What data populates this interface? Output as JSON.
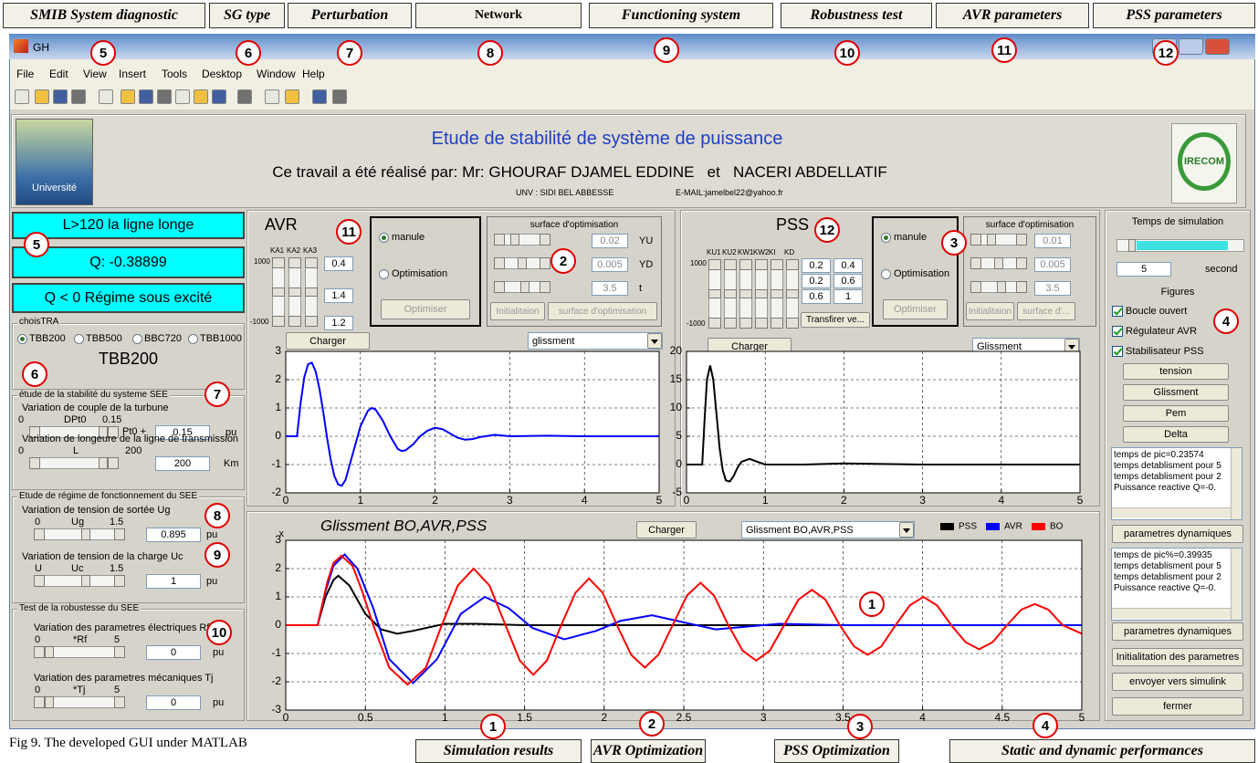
{
  "annotations": {
    "top": [
      "SMIB System diagnostic",
      "SG type",
      "Perturbation",
      "Network",
      "Functioning system",
      "Robustness test",
      "AVR parameters",
      "PSS parameters"
    ],
    "top_numbers": [
      5,
      6,
      7,
      8,
      9,
      10,
      11,
      12
    ],
    "inner_numbers": [
      5,
      6,
      7,
      8,
      9,
      10,
      11,
      2,
      12,
      3,
      4,
      1
    ],
    "bottom": [
      "Simulation results",
      "AVR Optimization",
      "PSS Optimization",
      "Static and dynamic performances"
    ],
    "bottom_numbers": [
      1,
      2,
      3,
      4
    ],
    "caption": "Fig 9. The developed GUI under MATLAB"
  },
  "window": {
    "title": "GH",
    "menu": [
      "File",
      "Edit",
      "View",
      "Insert",
      "Tools",
      "Desktop",
      "Window",
      "Help"
    ]
  },
  "header": {
    "title": "Etude de stabilité de système de puissance",
    "authors": "Ce travail a été réalisé par: Mr: GHOURAF DJAMEL EDDINE   et   NACERI ABDELLATIF",
    "university": "UNV : SIDI BEL ABBESSE",
    "email": "E-MAIL:jamelbel22@yahoo.fr",
    "logo_left": "Université",
    "logo_right": "IRECOM"
  },
  "diagnostic": [
    "L>120 la ligne longe",
    "Q: -0.38899",
    "Q < 0 Régime sous excité"
  ],
  "sg_type": {
    "title": "choisTRA",
    "options": [
      "TBB200",
      "TBB500",
      "BBC720",
      "TBB1000"
    ],
    "selected": "TBB200"
  },
  "perturbation": {
    "title": "étude de la stabilité du systeme SEE",
    "rows": [
      {
        "label": "Variation de couple de la turbune",
        "min": "0",
        "name": "DPt0",
        "max": "0.15",
        "prefix": "Pt0 +",
        "value": "0.15",
        "unit": "pu"
      },
      {
        "label": "Variation de longeure de la ligne de transmission",
        "min": "0",
        "name": "L",
        "max": "200",
        "value": "200",
        "unit": "Km"
      }
    ]
  },
  "functioning": {
    "title": "Etude de régime de fonctionnement du SEE",
    "rows": [
      {
        "label": "Variation de tension de sortée Ug",
        "min": "0",
        "name": "Ug",
        "max": "1.5",
        "value": "0.895",
        "unit": "pu"
      },
      {
        "label": "Variation de tension de la charge Uc",
        "min": "U",
        "name": "Uc",
        "max": "1.5",
        "value": "1",
        "unit": "pu"
      }
    ]
  },
  "robustness": {
    "title": "Test de la robustesse du SEE",
    "rows": [
      {
        "label": "Variation des parametres électriques Rf",
        "min": "0",
        "name": "*Rf",
        "max": "5",
        "value": "0",
        "unit": "pu"
      },
      {
        "label": "Variation des parametres mécaniques Tj",
        "min": "0",
        "name": "*Tj",
        "max": "5",
        "value": "0",
        "unit": "pu"
      }
    ]
  },
  "avr": {
    "title": "AVR",
    "gains": [
      "KA1",
      "KA2",
      "KA3"
    ],
    "slider_max": "1000",
    "slider_min": "-1000",
    "values": [
      "0.4",
      "1.4",
      "1.2"
    ],
    "modes": [
      "manule",
      "Optimisation"
    ],
    "optimise": "Optimiser",
    "surface": {
      "title": "surface d'optimisation",
      "rows": [
        {
          "value": "0.02",
          "name": "YU"
        },
        {
          "value": "0.005",
          "name": "YD"
        },
        {
          "value": "3.5",
          "name": "t"
        }
      ],
      "buttons": [
        "Initialitaion",
        "surface d'optimisation"
      ]
    },
    "load": "Charger",
    "dropdown": "glissment"
  },
  "pss": {
    "title": "PSS",
    "gains": [
      "KU1",
      "KU2",
      "KW1",
      "KW2",
      "KI",
      "KD"
    ],
    "slider_max": "1000",
    "slider_min": "-1000",
    "values": [
      "0.2",
      "0.4",
      "0.2",
      "0.6",
      "0.6",
      "1"
    ],
    "transfer": "Transfirer ve...",
    "modes": [
      "manule",
      "Optimisation"
    ],
    "optimise": "Optimiser",
    "surface": {
      "title": "surface d'optimisation",
      "rows": [
        {
          "value": "0.01"
        },
        {
          "value": "0.005"
        },
        {
          "value": "3.5"
        }
      ],
      "buttons": [
        "Initialitaion",
        "surface d'..."
      ]
    },
    "load": "Charger",
    "dropdown": "Glissment"
  },
  "results": {
    "load": "Charger",
    "dropdown": "Glissment BO,AVR,PSS"
  },
  "performance": {
    "sim_time_label": "Temps de simulation",
    "sim_time": "5",
    "unit": "second",
    "figures": "Figures",
    "checks": [
      "Boucle ouvert",
      "Régulateur AVR",
      "Stabilisateur PSS"
    ],
    "plots": [
      "tension",
      "Glissment",
      "Pem",
      "Delta"
    ],
    "list1": [
      "temps de pic=0.23574",
      "temps detablisment pour 5",
      "temps detablisment pour 2",
      "Puissance reactive Q=-0."
    ],
    "button1": "parametres dynamiques",
    "list2": [
      "temps de pic%=0.39935",
      "temps detablisment pour 5",
      "temps detablisment pour 2",
      "Puissance reactive Q=-0."
    ],
    "buttons": [
      "parametres dynamiques",
      "Initialitation des parametres",
      "envoyer vers simulink",
      "fermer"
    ]
  },
  "chart_data": [
    {
      "type": "line",
      "xlim": [
        0,
        5
      ],
      "ylim": [
        -2,
        3
      ],
      "xticks": [
        0,
        1,
        2,
        3,
        4,
        5
      ],
      "yticks": [
        -2,
        -1,
        0,
        1,
        2,
        3
      ],
      "grid": true,
      "x": [
        0,
        0.1,
        0.15,
        0.2,
        0.25,
        0.3,
        0.35,
        0.4,
        0.45,
        0.5,
        0.55,
        0.6,
        0.65,
        0.7,
        0.75,
        0.8,
        0.9,
        1.0,
        1.1,
        1.15,
        1.2,
        1.3,
        1.4,
        1.5,
        1.55,
        1.6,
        1.7,
        1.8,
        1.9,
        2.0,
        2.1,
        2.2,
        2.3,
        2.4,
        2.5,
        2.6,
        2.8,
        3.0,
        3.5,
        4,
        5
      ],
      "series": [
        {
          "color": "#0000ff",
          "values": [
            0,
            0,
            0,
            1.2,
            2.1,
            2.55,
            2.6,
            2.3,
            1.7,
            0.9,
            0,
            -0.8,
            -1.4,
            -1.7,
            -1.75,
            -1.55,
            -0.6,
            0.35,
            0.9,
            1.0,
            0.95,
            0.55,
            0,
            -0.45,
            -0.52,
            -0.5,
            -0.3,
            0,
            0.2,
            0.3,
            0.25,
            0.1,
            -0.05,
            -0.12,
            -0.1,
            -0.03,
            0.05,
            0,
            0.02,
            0,
            0
          ]
        }
      ]
    },
    {
      "type": "line",
      "xlim": [
        0,
        5
      ],
      "ylim": [
        -5,
        20
      ],
      "xticks": [
        0,
        1,
        2,
        3,
        4,
        5
      ],
      "yticks": [
        -5,
        0,
        5,
        10,
        15,
        20
      ],
      "grid": true,
      "x": [
        0,
        0.2,
        0.23,
        0.26,
        0.3,
        0.34,
        0.38,
        0.42,
        0.46,
        0.5,
        0.55,
        0.6,
        0.65,
        0.7,
        0.8,
        0.9,
        1.0,
        1.2,
        1.5,
        2,
        3,
        4,
        5
      ],
      "series": [
        {
          "color": "#000000",
          "values": [
            0,
            0,
            8,
            15,
            17.5,
            15,
            9,
            3,
            -1,
            -2.8,
            -3,
            -2,
            -0.5,
            0.5,
            1,
            0.5,
            0,
            0,
            0,
            0.2,
            0,
            0,
            0
          ]
        }
      ]
    },
    {
      "type": "line",
      "title": "Glissment BO,AVR,PSS",
      "exponent_label": "x",
      "legend": "top-right",
      "xlim": [
        0,
        5
      ],
      "ylim": [
        -3,
        3
      ],
      "xticks": [
        0,
        0.5,
        1,
        1.5,
        2,
        2.5,
        3,
        3.5,
        4,
        4.5,
        5
      ],
      "yticks": [
        -3,
        -2,
        -1,
        0,
        1,
        2,
        3
      ],
      "grid": true,
      "series": [
        {
          "name": "PSS",
          "color": "#000000",
          "x": [
            0,
            0.2,
            0.25,
            0.3,
            0.33,
            0.4,
            0.5,
            0.6,
            0.7,
            0.8,
            1.0,
            1.2,
            1.5,
            2,
            2.5,
            3,
            5
          ],
          "values": [
            0,
            0,
            1.0,
            1.6,
            1.75,
            1.4,
            0.4,
            -0.15,
            -0.3,
            -0.2,
            0.05,
            0.05,
            0,
            0,
            0,
            0,
            0
          ]
        },
        {
          "name": "AVR",
          "color": "#0000ff",
          "x": [
            0,
            0.2,
            0.25,
            0.3,
            0.37,
            0.45,
            0.55,
            0.65,
            0.8,
            0.95,
            1.1,
            1.25,
            1.4,
            1.55,
            1.75,
            1.95,
            2.1,
            2.3,
            2.5,
            2.7,
            2.9,
            3.1,
            3.5,
            4,
            5
          ],
          "values": [
            0,
            0,
            1.2,
            2.1,
            2.5,
            2.0,
            0.6,
            -1.2,
            -2.05,
            -1.2,
            0.4,
            1.0,
            0.6,
            -0.1,
            -0.5,
            -0.2,
            0.15,
            0.35,
            0.1,
            -0.15,
            -0.05,
            0.05,
            0,
            0,
            0
          ]
        },
        {
          "name": "BO",
          "color": "#ff0000",
          "x": [
            0,
            0.2,
            0.26,
            0.3,
            0.35,
            0.42,
            0.48,
            0.55,
            0.65,
            0.765,
            0.88,
            0.98,
            1.08,
            1.18,
            1.28,
            1.38,
            1.47,
            1.555,
            1.64,
            1.73,
            1.82,
            1.905,
            1.99,
            2.08,
            2.17,
            2.255,
            2.34,
            2.43,
            2.52,
            2.605,
            2.69,
            2.78,
            2.87,
            2.955,
            3.04,
            3.13,
            3.22,
            3.305,
            3.39,
            3.48,
            3.57,
            3.655,
            3.74,
            3.83,
            3.92,
            4.005,
            4.09,
            4.18,
            4.27,
            4.355,
            4.44,
            4.53,
            4.62,
            4.705,
            4.79,
            4.88,
            5
          ],
          "values": [
            0,
            0,
            1.5,
            2.2,
            2.45,
            2.1,
            1.2,
            0,
            -1.5,
            -2.1,
            -1.5,
            0,
            1.4,
            2.0,
            1.4,
            0,
            -1.25,
            -1.75,
            -1.25,
            0,
            1.15,
            1.65,
            1.15,
            0,
            -1.05,
            -1.5,
            -1.05,
            0,
            1.05,
            1.5,
            1.05,
            0,
            -0.9,
            -1.25,
            -0.9,
            0,
            0.9,
            1.25,
            0.9,
            0,
            -0.75,
            -1.05,
            -0.75,
            0,
            0.7,
            1.0,
            0.7,
            0,
            -0.6,
            -0.85,
            -0.6,
            0,
            0.55,
            0.75,
            0.55,
            0,
            -0.3
          ]
        }
      ]
    }
  ]
}
